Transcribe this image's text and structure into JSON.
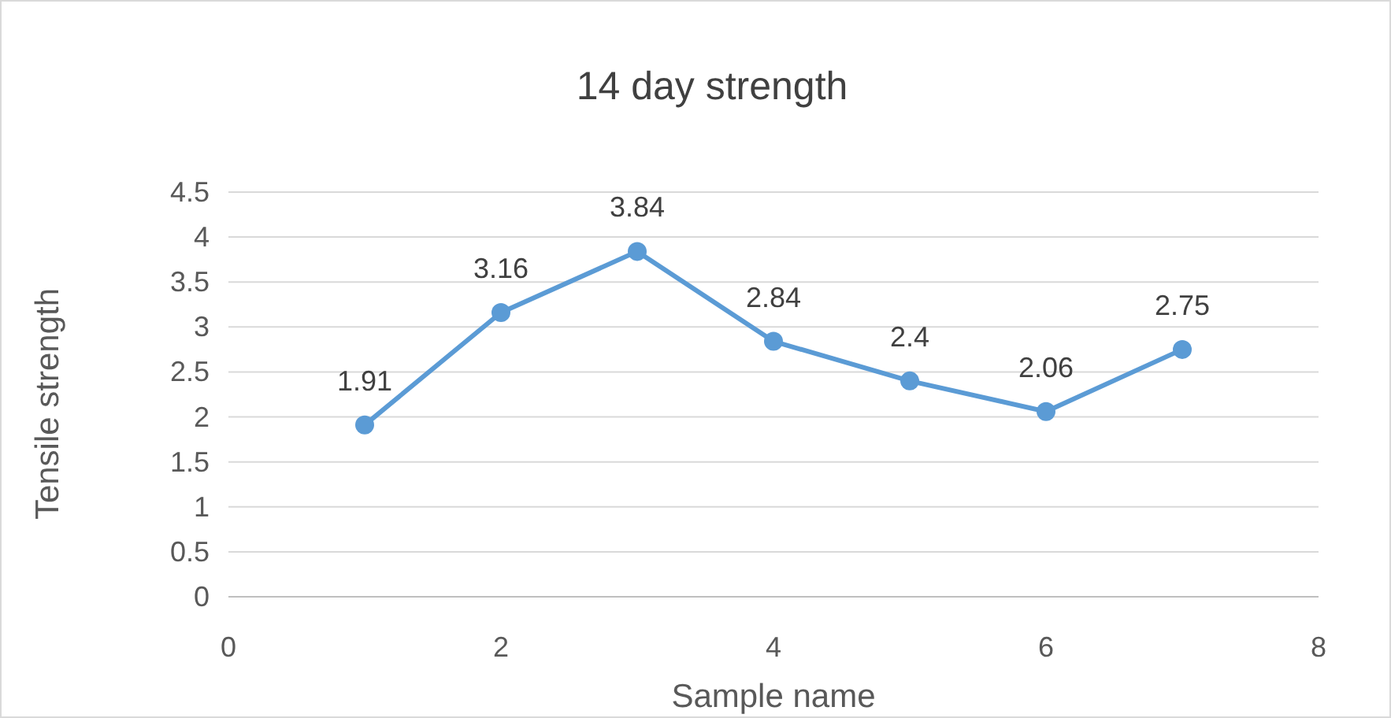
{
  "chart_data": {
    "type": "line",
    "title": "14 day strength",
    "xlabel": "Sample name",
    "ylabel": "Tensile strength",
    "x": [
      1,
      2,
      3,
      4,
      5,
      6,
      7
    ],
    "series": [
      {
        "color": "#5b9bd5",
        "values": [
          1.91,
          3.16,
          3.84,
          2.84,
          2.4,
          2.06,
          2.75
        ]
      }
    ],
    "xlim": [
      0,
      8
    ],
    "xticks": [
      0,
      2,
      4,
      6,
      8
    ],
    "ylim": [
      0,
      4.5
    ],
    "yticks": [
      0,
      0.5,
      1,
      1.5,
      2,
      2.5,
      3,
      3.5,
      4,
      4.5
    ],
    "grid": "y",
    "marker": "circle",
    "line_style": "solid",
    "data_labels": true
  }
}
